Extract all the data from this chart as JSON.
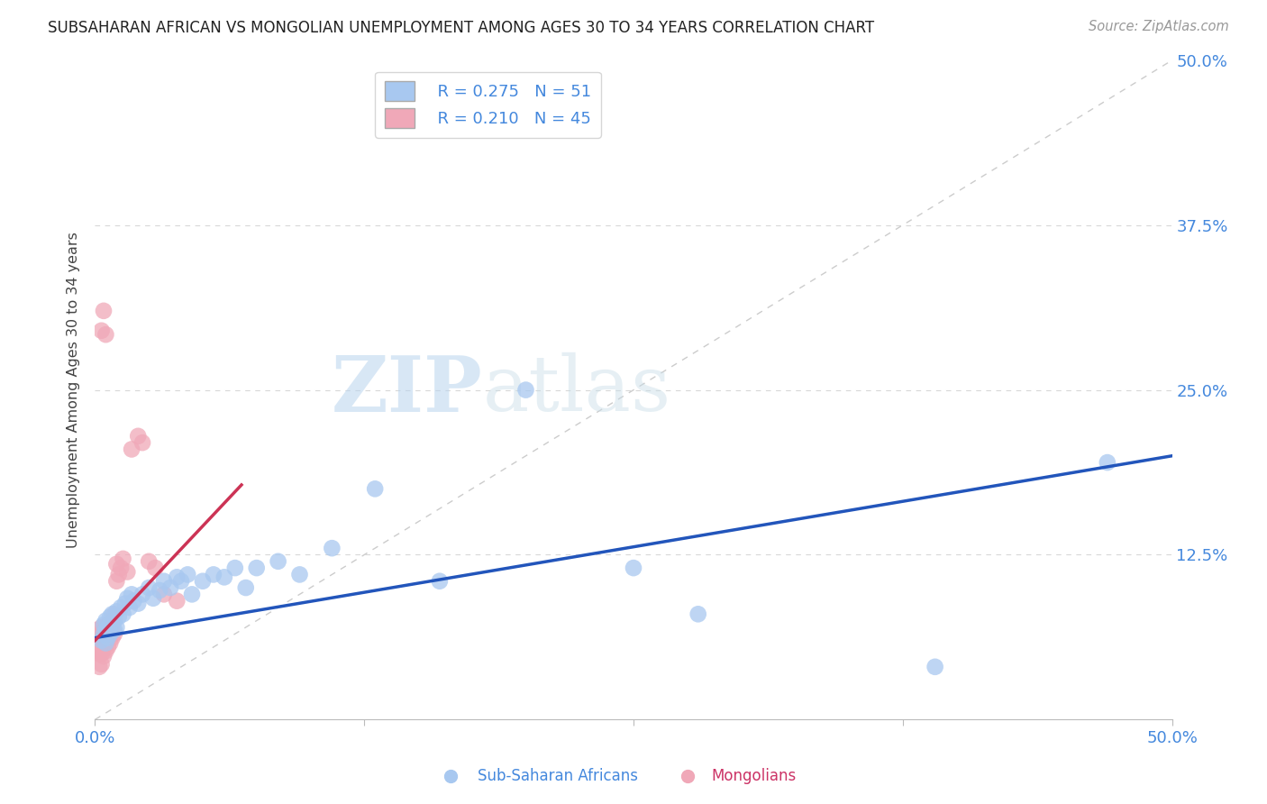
{
  "title": "SUBSAHARAN AFRICAN VS MONGOLIAN UNEMPLOYMENT AMONG AGES 30 TO 34 YEARS CORRELATION CHART",
  "source": "Source: ZipAtlas.com",
  "ylabel": "Unemployment Among Ages 30 to 34 years",
  "xlim": [
    0.0,
    0.5
  ],
  "ylim": [
    0.0,
    0.5
  ],
  "blue_R": 0.275,
  "blue_N": 51,
  "pink_R": 0.21,
  "pink_N": 45,
  "blue_color": "#a8c8f0",
  "pink_color": "#f0a8b8",
  "blue_line_color": "#2255bb",
  "pink_line_color": "#cc3355",
  "diagonal_color": "#cccccc",
  "watermark_zip": "ZIP",
  "watermark_atlas": "atlas",
  "blue_points_x": [
    0.003,
    0.004,
    0.004,
    0.005,
    0.005,
    0.005,
    0.006,
    0.006,
    0.007,
    0.007,
    0.008,
    0.008,
    0.009,
    0.009,
    0.01,
    0.01,
    0.011,
    0.012,
    0.013,
    0.014,
    0.015,
    0.016,
    0.017,
    0.018,
    0.02,
    0.022,
    0.025,
    0.027,
    0.03,
    0.032,
    0.035,
    0.038,
    0.04,
    0.043,
    0.045,
    0.05,
    0.055,
    0.06,
    0.065,
    0.07,
    0.075,
    0.085,
    0.095,
    0.11,
    0.13,
    0.16,
    0.2,
    0.25,
    0.28,
    0.39,
    0.47
  ],
  "blue_points_y": [
    0.06,
    0.065,
    0.072,
    0.058,
    0.068,
    0.075,
    0.062,
    0.07,
    0.065,
    0.078,
    0.072,
    0.08,
    0.068,
    0.075,
    0.07,
    0.082,
    0.078,
    0.085,
    0.08,
    0.088,
    0.092,
    0.085,
    0.095,
    0.09,
    0.088,
    0.095,
    0.1,
    0.092,
    0.098,
    0.105,
    0.1,
    0.108,
    0.105,
    0.11,
    0.095,
    0.105,
    0.11,
    0.108,
    0.115,
    0.1,
    0.115,
    0.12,
    0.11,
    0.13,
    0.175,
    0.105,
    0.25,
    0.115,
    0.08,
    0.04,
    0.195
  ],
  "pink_points_x": [
    0.0,
    0.001,
    0.001,
    0.001,
    0.002,
    0.002,
    0.002,
    0.003,
    0.003,
    0.003,
    0.003,
    0.004,
    0.004,
    0.004,
    0.004,
    0.005,
    0.005,
    0.005,
    0.006,
    0.006,
    0.006,
    0.007,
    0.007,
    0.008,
    0.008,
    0.009,
    0.009,
    0.01,
    0.01,
    0.011,
    0.012,
    0.013,
    0.015,
    0.017,
    0.02,
    0.022,
    0.025,
    0.028,
    0.032,
    0.038,
    0.003,
    0.004,
    0.005,
    0.002,
    0.003
  ],
  "pink_points_y": [
    0.055,
    0.052,
    0.06,
    0.068,
    0.05,
    0.058,
    0.065,
    0.05,
    0.055,
    0.062,
    0.07,
    0.048,
    0.055,
    0.062,
    0.07,
    0.052,
    0.058,
    0.068,
    0.055,
    0.062,
    0.072,
    0.058,
    0.068,
    0.062,
    0.075,
    0.065,
    0.08,
    0.105,
    0.118,
    0.11,
    0.115,
    0.122,
    0.112,
    0.205,
    0.215,
    0.21,
    0.12,
    0.115,
    0.095,
    0.09,
    0.295,
    0.31,
    0.292,
    0.04,
    0.042
  ],
  "blue_line_x0": 0.0,
  "blue_line_y0": 0.062,
  "blue_line_x1": 0.5,
  "blue_line_y1": 0.2,
  "pink_line_x0": 0.0,
  "pink_line_y0": 0.06,
  "pink_line_x1": 0.068,
  "pink_line_y1": 0.178
}
